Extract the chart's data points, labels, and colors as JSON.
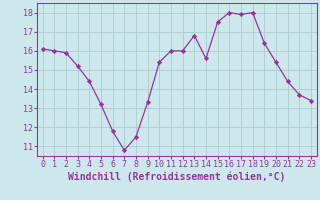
{
  "x": [
    0,
    1,
    2,
    3,
    4,
    5,
    6,
    7,
    8,
    9,
    10,
    11,
    12,
    13,
    14,
    15,
    16,
    17,
    18,
    19,
    20,
    21,
    22,
    23
  ],
  "y": [
    16.1,
    16.0,
    15.9,
    15.2,
    14.4,
    13.2,
    11.8,
    10.8,
    11.5,
    13.3,
    15.4,
    16.0,
    16.0,
    16.8,
    15.6,
    17.5,
    18.0,
    17.9,
    18.0,
    16.4,
    15.4,
    14.4,
    13.7,
    13.4
  ],
  "xlim": [
    -0.5,
    23.5
  ],
  "ylim": [
    10.5,
    18.5
  ],
  "yticks": [
    11,
    12,
    13,
    14,
    15,
    16,
    17,
    18
  ],
  "xticks": [
    0,
    1,
    2,
    3,
    4,
    5,
    6,
    7,
    8,
    9,
    10,
    11,
    12,
    13,
    14,
    15,
    16,
    17,
    18,
    19,
    20,
    21,
    22,
    23
  ],
  "line_color": "#993399",
  "marker": "D",
  "marker_size": 2.2,
  "bg_color": "#cce8ec",
  "grid_color": "#aacccc",
  "xlabel": "Windchill (Refroidissement éolien,°C)",
  "xlabel_fontsize": 7.0,
  "tick_fontsize": 6.0,
  "spine_color": "#993399"
}
